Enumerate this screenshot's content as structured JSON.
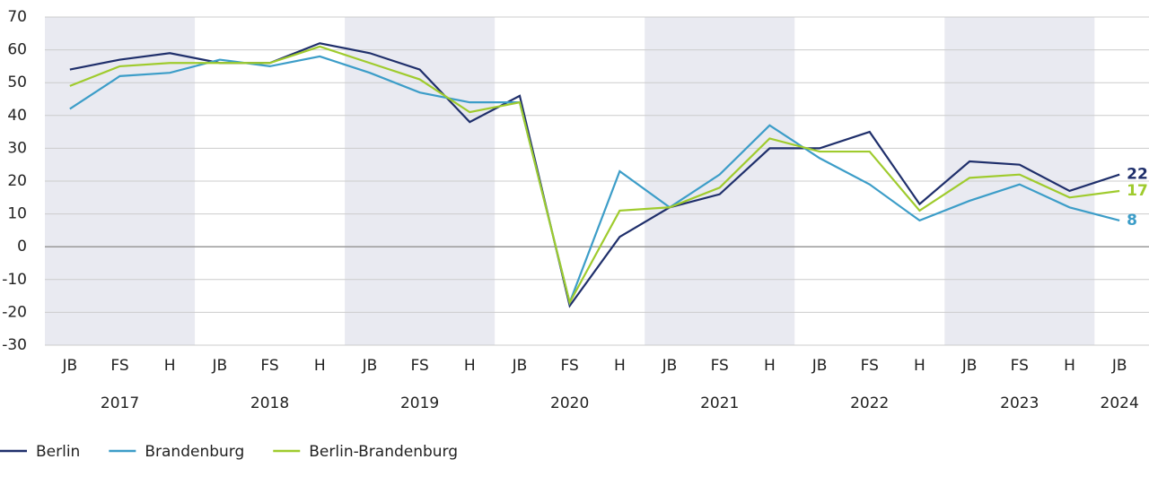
{
  "chart_data": {
    "type": "line",
    "categories": [
      "JB",
      "FS",
      "H",
      "JB",
      "FS",
      "H",
      "JB",
      "FS",
      "H",
      "JB",
      "FS",
      "H",
      "JB",
      "FS",
      "H",
      "JB",
      "FS",
      "H",
      "JB",
      "FS",
      "H",
      "JB"
    ],
    "year_labels": [
      "2017",
      "2018",
      "2019",
      "2020",
      "2021",
      "2022",
      "2023",
      "2024"
    ],
    "series": [
      {
        "name": "Berlin",
        "color": "#1f2f6b",
        "values": [
          54,
          57,
          59,
          56,
          56,
          62,
          59,
          54,
          38,
          46,
          -18,
          3,
          12,
          16,
          30,
          30,
          35,
          13,
          26,
          25,
          17,
          22
        ]
      },
      {
        "name": "Brandenburg",
        "color": "#3c9dc8",
        "values": [
          42,
          52,
          53,
          57,
          55,
          58,
          53,
          47,
          44,
          44,
          -17,
          23,
          12,
          22,
          37,
          27,
          19,
          8,
          14,
          19,
          12,
          8
        ]
      },
      {
        "name": "Berlin-Brandenburg",
        "color": "#9fcb2d",
        "values": [
          49,
          55,
          56,
          56,
          56,
          61,
          56,
          51,
          41,
          44,
          -17,
          11,
          12,
          18,
          33,
          29,
          29,
          11,
          21,
          22,
          15,
          17
        ]
      }
    ],
    "ylim": [
      -30,
      70
    ],
    "yticks": [
      -30,
      -20,
      -10,
      0,
      10,
      20,
      30,
      40,
      50,
      60,
      70
    ],
    "grid": true,
    "alternate_year_shading": true,
    "end_labels": true,
    "legend": "bottom-left"
  }
}
